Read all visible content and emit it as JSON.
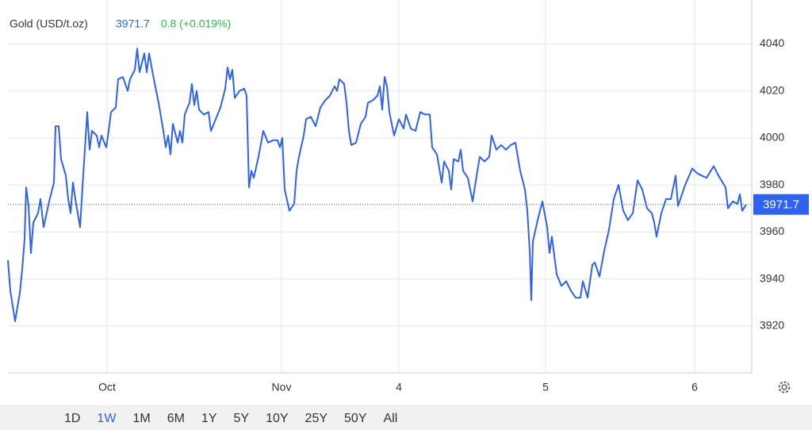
{
  "chart_data": {
    "type": "line",
    "title": "Gold (USD/t.oz)",
    "price": 3971.7,
    "change": "0.8 (+0.019%)",
    "series": [
      {
        "name": "Gold",
        "color": "#2f62ef",
        "x": [
          0,
          3,
          9,
          15,
          18,
          21,
          23,
          26,
          29,
          32,
          38,
          41,
          45,
          52,
          58,
          60,
          64,
          67,
          73,
          76,
          79,
          82,
          85,
          91,
          94,
          97,
          100,
          103,
          106,
          112,
          115,
          118,
          124,
          127,
          130,
          136,
          139,
          145,
          151,
          154,
          160,
          163,
          166,
          172,
          175,
          178,
          184,
          190,
          196,
          199,
          202,
          205,
          208,
          214,
          217,
          220,
          223,
          229,
          232,
          235,
          238,
          241,
          247,
          253,
          256,
          262,
          268,
          274,
          277,
          280,
          283,
          286,
          292,
          298,
          301,
          304,
          307,
          310,
          316,
          322,
          328,
          334,
          340,
          343,
          346,
          349,
          355,
          361,
          364,
          367,
          373,
          376,
          382,
          388,
          394,
          400,
          406,
          412,
          415,
          418,
          424,
          427,
          430,
          433,
          439,
          445,
          451,
          454,
          460,
          466,
          469,
          472,
          475,
          478,
          481,
          487,
          493,
          499,
          502,
          508,
          514,
          520,
          526,
          532,
          535,
          541,
          547,
          550,
          556,
          559,
          562,
          568,
          571,
          574,
          580,
          586,
          592,
          595,
          601,
          607,
          610,
          616,
          622,
          628,
          634,
          640,
          646,
          652,
          655,
          658,
          660,
          662,
          668,
          674,
          680,
          683,
          686,
          692,
          698,
          704,
          710,
          716,
          722,
          725,
          731,
          737,
          740,
          746,
          752,
          758,
          764,
          770,
          776,
          782,
          788,
          794,
          800,
          806,
          812,
          815,
          818,
          824,
          830,
          836,
          842,
          845,
          854,
          863,
          869,
          875,
          881,
          890,
          896,
          905,
          908,
          914,
          920,
          923,
          926,
          931
        ],
        "values": [
          3948,
          3935,
          3922,
          3934,
          3944,
          3957,
          3979,
          3971,
          3951,
          3964,
          3968,
          3974,
          3962,
          3973,
          3981,
          4005,
          4005,
          3991,
          3984,
          3974,
          3968,
          3981,
          3974,
          3962,
          3979,
          3995,
          4011,
          3995,
          4003,
          4001,
          3996,
          4001,
          3996,
          4003,
          4011,
          4013,
          4025,
          4026,
          4020,
          4025,
          4029,
          4038,
          4028,
          4036,
          4028,
          4036,
          4025,
          4015,
          4003,
          3996,
          4001,
          3993,
          4006,
          3998,
          4003,
          3998,
          4010,
          4015,
          4023,
          4014,
          4020,
          4012,
          4010,
          4011,
          4003,
          4008,
          4013,
          4021,
          4030,
          4025,
          4029,
          4017,
          4020,
          4021,
          4018,
          3979,
          3986,
          3983,
          3992,
          4003,
          3998,
          3999,
          3999,
          3996,
          4000,
          3978,
          3969,
          3972,
          3986,
          3992,
          4001,
          4008,
          4009,
          4005,
          4013,
          4016,
          4018,
          4022,
          4020,
          4025,
          4023,
          4015,
          4003,
          3997,
          3998,
          4006,
          4009,
          4015,
          4016,
          4018,
          4022,
          4012,
          4026,
          4022,
          4011,
          4001,
          4008,
          4004,
          4010,
          4004,
          4003,
          4011,
          4010,
          4010,
          3996,
          3993,
          3981,
          3990,
          3986,
          3978,
          3991,
          3990,
          3995,
          3986,
          3983,
          3973,
          3986,
          3992,
          3990,
          3992,
          4001,
          3995,
          3997,
          3995,
          3997,
          3998,
          3986,
          3978,
          3969,
          3952,
          3931,
          3956,
          3965,
          3973,
          3962,
          3951,
          3958,
          3942,
          3937,
          3939,
          3935,
          3932,
          3932,
          3939,
          3932,
          3946,
          3947,
          3941,
          3952,
          3961,
          3974,
          3980,
          3969,
          3965,
          3968,
          3982,
          3978,
          3970,
          3968,
          3964,
          3958,
          3968,
          3974,
          3974,
          3984,
          3971,
          3980,
          3987,
          3985,
          3984,
          3983,
          3988,
          3984,
          3979,
          3970,
          3973,
          3972,
          3976,
          3969,
          3971.7
        ]
      }
    ],
    "xlim": [
      0,
      938
    ],
    "xticks": [
      {
        "value": 125,
        "label": "Oct"
      },
      {
        "value": 345,
        "label": "Nov"
      },
      {
        "value": 493,
        "label": "4"
      },
      {
        "value": 678,
        "label": "5"
      },
      {
        "value": 866,
        "label": "6"
      }
    ],
    "ylim": [
      3900,
      4055
    ],
    "yticks": [
      3920,
      3940,
      3960,
      3980,
      4000,
      4020,
      4040
    ],
    "grid": true,
    "ranges": [
      "1D",
      "1W",
      "1M",
      "6M",
      "1Y",
      "5Y",
      "10Y",
      "25Y",
      "50Y",
      "All"
    ],
    "active_range": "1W"
  }
}
